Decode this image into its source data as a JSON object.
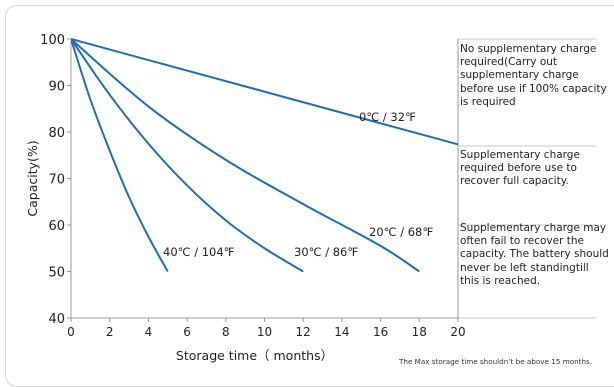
{
  "chart_data": {
    "type": "line",
    "xlabel": "Storage time（ months）",
    "ylabel": "Capacity(%)",
    "xlim": [
      0,
      20
    ],
    "ylim": [
      40,
      100
    ],
    "xticks": [
      0,
      2,
      4,
      6,
      8,
      10,
      12,
      14,
      16,
      18,
      20
    ],
    "yticks": [
      40,
      50,
      60,
      70,
      80,
      90,
      100
    ],
    "line_color": "#1f6fb2",
    "series": [
      {
        "name": "0℃ / 32℉",
        "x": [
          0,
          20.3
        ],
        "y": [
          100,
          77
        ]
      },
      {
        "name": "20℃ / 68℉",
        "x": [
          0,
          4,
          8,
          12,
          16,
          18
        ],
        "y": [
          100,
          85.5,
          74,
          64.5,
          55.5,
          50
        ]
      },
      {
        "name": "30℃ / 86℉",
        "x": [
          0,
          2,
          4,
          6,
          8,
          10,
          12
        ],
        "y": [
          100,
          88,
          77.5,
          68.5,
          61,
          55,
          50
        ]
      },
      {
        "name": "40℃ / 104℉",
        "x": [
          0,
          1,
          2,
          3,
          4,
          5
        ],
        "y": [
          100,
          87,
          76,
          66,
          57.5,
          50
        ]
      }
    ],
    "zones": [
      {
        "from": 77,
        "to": 100,
        "text": "No supplementary charge required(Carry out supplementary charge before use if 100% capacity is required"
      },
      {
        "from": 60,
        "to": 77,
        "text": "Supplementary charge required before use to recover full capacity."
      },
      {
        "from": 40,
        "to": 60,
        "text": "Supplementary charge may often fail to recover the capacity. The battery should never be left standingtill this is reached."
      }
    ],
    "footnote": "The Max storage time shouldn’t be above 15 months."
  }
}
